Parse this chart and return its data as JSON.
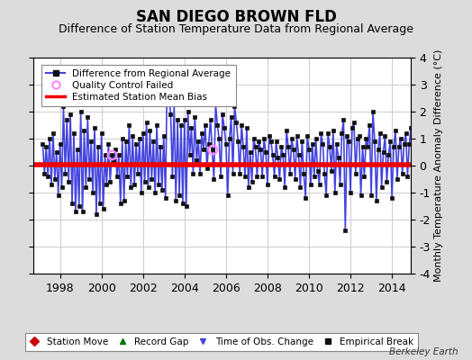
{
  "title": "SAN DIEGO BROWN FLD",
  "subtitle": "Difference of Station Temperature Data from Regional Average",
  "ylabel_right": "Monthly Temperature Anomaly Difference (°C)",
  "ylim": [
    -4,
    4
  ],
  "yticks": [
    -4,
    -3,
    -2,
    -1,
    0,
    1,
    2,
    3,
    4
  ],
  "xlim_start": 1996.7,
  "xlim_end": 2014.9,
  "xtick_years": [
    1998,
    2000,
    2002,
    2004,
    2006,
    2008,
    2010,
    2012,
    2014
  ],
  "bias_line": 0.05,
  "bias_color": "#EE0000",
  "line_color": "#4444DD",
  "line_color_light": "#8888EE",
  "marker_color": "#111111",
  "qc_fail_color": "#FF88FF",
  "background_color": "#DCDCDC",
  "plot_bg_color": "#FFFFFF",
  "grid_color": "#CCCCCC",
  "title_fontsize": 12,
  "subtitle_fontsize": 9,
  "watermark": "Berkeley Earth",
  "data": [
    0.8,
    -0.3,
    0.7,
    -0.4,
    1.0,
    -0.7,
    1.2,
    -0.5,
    0.5,
    -1.1,
    0.8,
    -0.8,
    2.2,
    -0.3,
    1.7,
    -0.6,
    1.9,
    -1.4,
    1.2,
    -1.7,
    0.6,
    -1.5,
    2.0,
    -1.7,
    1.3,
    -0.8,
    1.8,
    -0.5,
    0.9,
    -1.0,
    1.4,
    -1.8,
    0.7,
    -1.4,
    1.2,
    -1.6,
    0.4,
    -0.7,
    0.8,
    -0.6,
    0.4,
    0.2,
    0.6,
    -0.4,
    0.4,
    -1.4,
    1.0,
    -1.3,
    0.9,
    -0.4,
    1.5,
    -0.8,
    1.1,
    -0.7,
    0.8,
    -0.3,
    1.0,
    -1.0,
    1.2,
    -0.6,
    1.6,
    -0.8,
    1.3,
    -0.5,
    0.9,
    -1.0,
    1.5,
    -0.7,
    0.7,
    -0.9,
    1.1,
    -1.2,
    3.5,
    2.6,
    1.9,
    -0.4,
    2.3,
    -1.3,
    1.7,
    -1.1,
    1.5,
    -1.4,
    1.7,
    -1.5,
    2.0,
    0.4,
    1.4,
    -0.3,
    1.8,
    0.2,
    0.9,
    -0.3,
    1.2,
    0.6,
    1.5,
    -0.1,
    0.8,
    1.7,
    0.6,
    -0.5,
    2.3,
    1.5,
    1.0,
    -0.4,
    1.9,
    1.4,
    0.8,
    -1.1,
    1.0,
    1.8,
    -0.3,
    2.2,
    1.6,
    0.9,
    -0.3,
    1.5,
    0.7,
    -0.4,
    1.4,
    -0.8,
    0.5,
    -0.6,
    1.0,
    0.7,
    -0.4,
    0.9,
    0.6,
    -0.4,
    1.0,
    0.5,
    -0.7,
    1.1,
    0.9,
    0.4,
    -0.4,
    0.9,
    0.3,
    -0.5,
    0.7,
    0.4,
    -0.8,
    1.3,
    0.7,
    -0.3,
    1.0,
    0.6,
    -0.5,
    1.1,
    0.4,
    -0.8,
    0.9,
    -0.3,
    -1.2,
    1.1,
    0.6,
    -0.7,
    0.8,
    -0.4,
    1.0,
    -0.2,
    -0.7,
    1.2,
    0.8,
    -0.3,
    -1.1,
    1.2,
    0.7,
    -0.2,
    1.3,
    -1.0,
    0.8,
    0.3,
    -0.7,
    1.2,
    1.7,
    -2.4,
    1.1,
    0.9,
    -1.0,
    1.4,
    1.6,
    -0.3,
    1.0,
    1.1,
    -1.1,
    0.7,
    -0.4,
    1.0,
    0.7,
    1.5,
    -1.1,
    2.0,
    0.9,
    -1.3,
    0.6,
    1.2,
    -0.8,
    0.5,
    1.1,
    -0.6,
    0.4,
    0.9,
    -1.2,
    0.7,
    1.3,
    -0.5,
    0.7,
    1.0,
    -0.3,
    0.8,
    1.2,
    -0.4,
    0.8,
    1.4,
    -0.7,
    1.7,
    1.8,
    -0.6,
    1.1
  ],
  "start_year": 1997,
  "start_month": 3,
  "qc_fail_indices": [
    40,
    98
  ],
  "bias_line_value": 0.05
}
